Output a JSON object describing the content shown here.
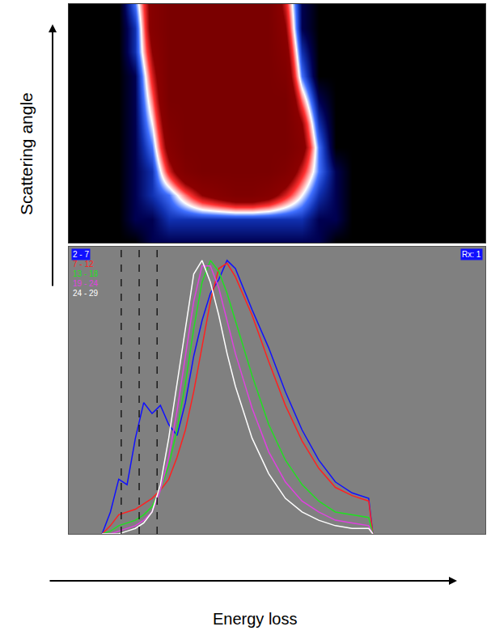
{
  "chart_data": [
    {
      "type": "heatmap",
      "ylabel": "Scattering angle",
      "x": [
        0,
        4,
        8,
        12,
        16,
        20,
        24,
        28,
        32,
        36,
        40,
        44,
        48,
        52,
        56,
        60,
        64,
        68,
        72,
        76,
        80,
        84,
        88,
        92,
        96,
        100
      ],
      "y": [
        0,
        10,
        20,
        30,
        40,
        50,
        60,
        70,
        80,
        90,
        100
      ],
      "z": [
        [
          0,
          0,
          0,
          0,
          0,
          1,
          1,
          1,
          1,
          1,
          1,
          1,
          1,
          1,
          1,
          1,
          0,
          0,
          0,
          0,
          0,
          0,
          0,
          0,
          0,
          0
        ],
        [
          0,
          0,
          0,
          0,
          1,
          1,
          2,
          2,
          2,
          2,
          2,
          2,
          2,
          2,
          2,
          1,
          1,
          0,
          0,
          0,
          0,
          0,
          0,
          0,
          0,
          0
        ],
        [
          0,
          0,
          0,
          0,
          1,
          2,
          3,
          5,
          7,
          8,
          9,
          9,
          8,
          6,
          4,
          2,
          1,
          0,
          0,
          0,
          0,
          0,
          0,
          0,
          0,
          0
        ],
        [
          0,
          0,
          0,
          0,
          1,
          2,
          6,
          9,
          10,
          10,
          10,
          10,
          10,
          9,
          6,
          3,
          1,
          0,
          0,
          0,
          0,
          0,
          0,
          0,
          0,
          0
        ],
        [
          0,
          0,
          0,
          0,
          1,
          3,
          8,
          10,
          10,
          10,
          10,
          10,
          10,
          10,
          8,
          3,
          0,
          0,
          0,
          0,
          0,
          0,
          0,
          0,
          0,
          0
        ],
        [
          0,
          0,
          0,
          0,
          1,
          4,
          9,
          10,
          10,
          10,
          10,
          10,
          10,
          10,
          7,
          2,
          0,
          0,
          0,
          0,
          0,
          0,
          0,
          0,
          0,
          0
        ],
        [
          0,
          0,
          0,
          0,
          1,
          5,
          10,
          10,
          10,
          10,
          10,
          10,
          10,
          10,
          5,
          1,
          0,
          0,
          0,
          0,
          0,
          0,
          0,
          0,
          0,
          0
        ],
        [
          0,
          0,
          0,
          0,
          1,
          6,
          10,
          10,
          10,
          10,
          10,
          10,
          10,
          9,
          3,
          0,
          0,
          0,
          0,
          0,
          0,
          0,
          0,
          0,
          0,
          0
        ],
        [
          0,
          0,
          0,
          0,
          2,
          7,
          10,
          10,
          10,
          10,
          10,
          10,
          10,
          8,
          2,
          0,
          0,
          0,
          0,
          0,
          0,
          0,
          0,
          0,
          0,
          0
        ],
        [
          0,
          0,
          0,
          0,
          2,
          8,
          10,
          10,
          10,
          10,
          10,
          10,
          10,
          7,
          1,
          0,
          0,
          0,
          0,
          0,
          0,
          0,
          0,
          0,
          0,
          0
        ],
        [
          0,
          0,
          0,
          0,
          3,
          8,
          10,
          10,
          10,
          10,
          10,
          10,
          10,
          6,
          1,
          0,
          0,
          0,
          0,
          0,
          0,
          0,
          0,
          0,
          0,
          0
        ]
      ],
      "xlim": [
        0,
        100
      ],
      "ylim": [
        0,
        100
      ],
      "zlim": [
        0,
        10
      ],
      "tick_labels": false
    },
    {
      "type": "line",
      "xlabel": "Energy loss",
      "x": [
        8,
        10,
        12,
        14,
        16,
        18,
        20,
        22,
        24,
        26,
        28,
        30,
        32,
        34,
        36,
        38,
        40,
        44,
        48,
        52,
        56,
        60,
        64,
        68,
        72,
        73
      ],
      "series": [
        {
          "name": "2 - 7",
          "color": "#1010ff",
          "values": [
            0,
            8,
            20,
            18,
            35,
            48,
            44,
            47,
            40,
            36,
            48,
            65,
            78,
            88,
            93,
            100,
            97,
            82,
            68,
            52,
            38,
            27,
            19,
            15,
            13,
            0
          ]
        },
        {
          "name": "7 - 12",
          "color": "#ff2020",
          "values": [
            0,
            3,
            7,
            8,
            9,
            11,
            13,
            16,
            20,
            28,
            38,
            52,
            68,
            85,
            97,
            99,
            94,
            80,
            63,
            47,
            34,
            24,
            17,
            14,
            12,
            0
          ]
        },
        {
          "name": "13 - 18",
          "color": "#20e020",
          "values": [
            0,
            1,
            3,
            4,
            5,
            7,
            10,
            16,
            25,
            38,
            55,
            75,
            92,
            100,
            96,
            88,
            78,
            58,
            40,
            27,
            18,
            12,
            8,
            7,
            6,
            0
          ]
        },
        {
          "name": "19 - 24",
          "color": "#e040e0",
          "values": [
            0,
            0,
            1,
            2,
            3,
            5,
            8,
            16,
            28,
            45,
            65,
            85,
            98,
            98,
            90,
            78,
            66,
            46,
            30,
            19,
            12,
            8,
            5,
            4,
            3,
            0
          ]
        },
        {
          "name": "24 - 29",
          "color": "#ffffff",
          "values": [
            0,
            0,
            0,
            1,
            2,
            4,
            8,
            18,
            35,
            55,
            75,
            95,
            100,
            92,
            80,
            66,
            54,
            35,
            22,
            13,
            8,
            5,
            3,
            2,
            2,
            0
          ]
        }
      ],
      "vlines": [
        12.6,
        16.9,
        21.2
      ],
      "annotations": [
        "Rx: 1"
      ],
      "xlim": [
        0,
        100
      ],
      "ylim": [
        0,
        105
      ],
      "legend": "upper left",
      "tick_labels": false
    }
  ]
}
